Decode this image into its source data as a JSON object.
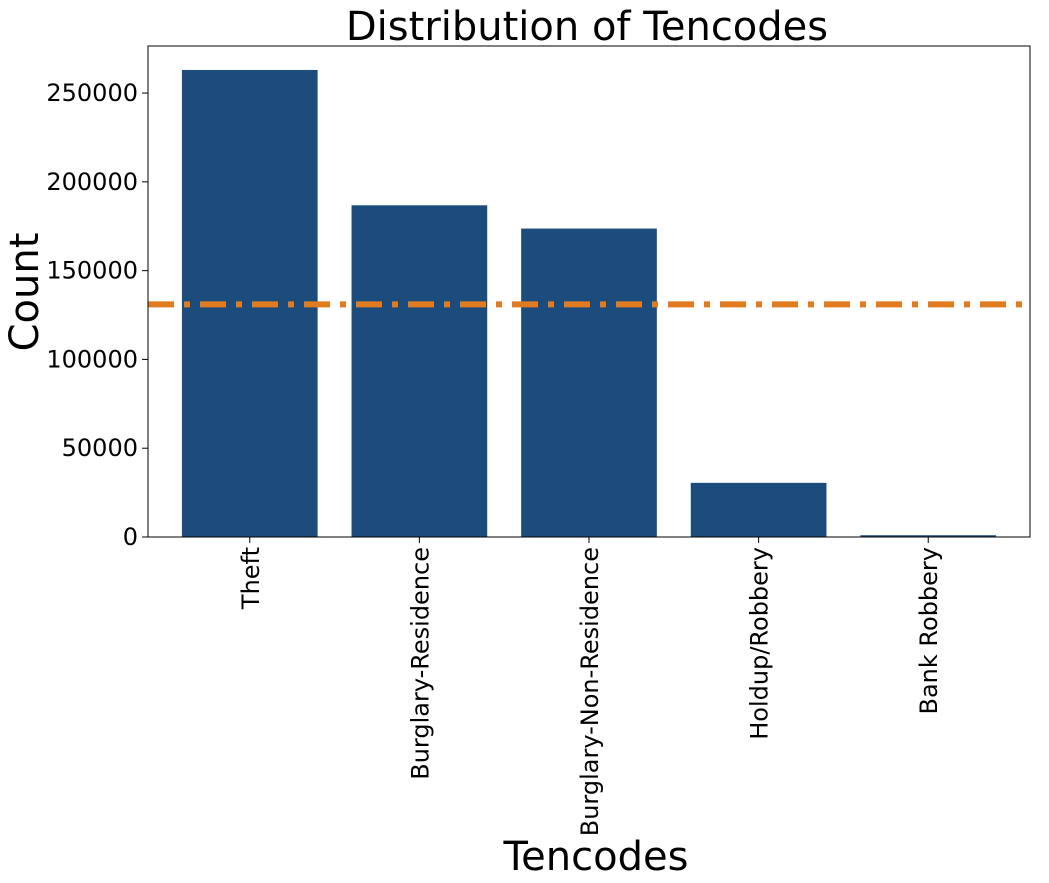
{
  "chart_data": {
    "type": "bar",
    "title": "Distribution of Tencodes",
    "xlabel": "Tencodes",
    "ylabel": "Count",
    "categories": [
      "Theft",
      "Burglary-Residence",
      "Burglary-Non-Residence",
      "Holdup/Robbery",
      "Bank Robbery"
    ],
    "values": [
      263000,
      186800,
      173700,
      30500,
      1000
    ],
    "ylim": [
      0,
      276500
    ],
    "yticks": [
      0,
      50000,
      100000,
      150000,
      200000,
      250000
    ],
    "ytick_labels": [
      "0",
      "50000",
      "100000",
      "150000",
      "200000",
      "250000"
    ],
    "bar_color": "#1c4c7c",
    "reference_line": {
      "value": 131000,
      "color": "#e07b20",
      "style": "dash-dot"
    },
    "grid": false,
    "legend": "none"
  }
}
